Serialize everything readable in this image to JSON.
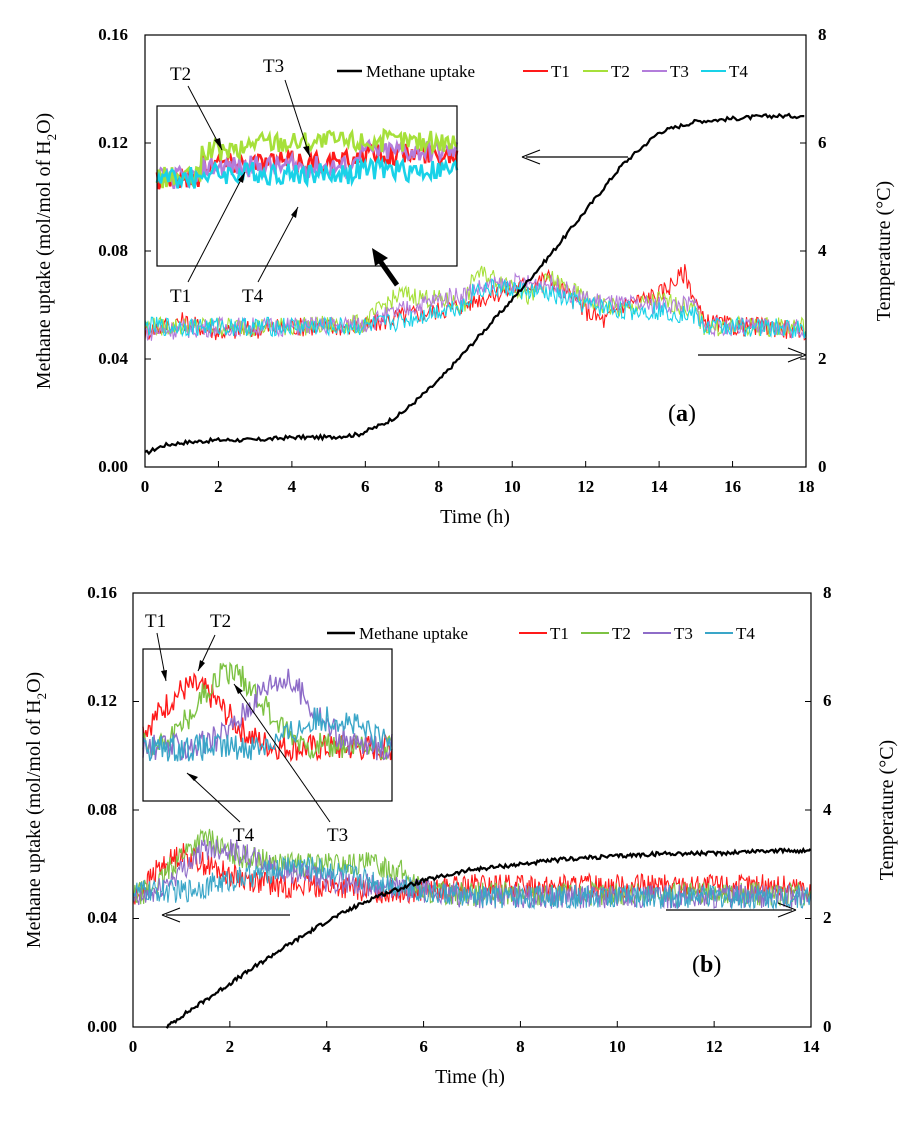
{
  "colors": {
    "methane": "#000000",
    "T1": "#ff1a1a",
    "T2": "#a6e03a",
    "T3": "#b37ddb",
    "T4": "#19d2e8",
    "T2_b": "#7dc243",
    "T3_b": "#8e6cc8",
    "T4_b": "#3aa6c8"
  },
  "chart_data": [
    {
      "type": "line",
      "panel_label_open": "(",
      "panel_label_letter": "a",
      "panel_label_close": ")",
      "xlabel": "Time (h)",
      "ylabel_left_prefix": "Methane uptake (mol/mol of H",
      "ylabel_left_sub": "2",
      "ylabel_left_suffix": "O)",
      "ylabel_right": "Temperature (°C)",
      "xlim": [
        0,
        18
      ],
      "ylim_left": [
        0,
        0.16
      ],
      "ylim_right": [
        0,
        8
      ],
      "x_ticks": [
        "0",
        "2",
        "4",
        "6",
        "8",
        "10",
        "12",
        "14",
        "16",
        "18"
      ],
      "y_left_ticks": [
        "0.00",
        "0.04",
        "0.08",
        "0.12",
        "0.16"
      ],
      "y_right_ticks": [
        "0",
        "2",
        "4",
        "6",
        "8"
      ],
      "legend": [
        "Methane uptake",
        "T1",
        "T2",
        "T3",
        "T4"
      ],
      "series": [
        {
          "name": "Methane uptake",
          "axis": "left",
          "x": [
            0,
            0.5,
            1,
            2,
            3,
            4,
            5,
            5.8,
            6.5,
            7,
            8,
            9,
            10,
            11,
            12,
            13,
            14,
            15,
            16,
            17,
            18
          ],
          "y": [
            0.005,
            0.008,
            0.009,
            0.01,
            0.01,
            0.011,
            0.011,
            0.012,
            0.016,
            0.02,
            0.032,
            0.047,
            0.062,
            0.078,
            0.095,
            0.112,
            0.124,
            0.128,
            0.129,
            0.13,
            0.13
          ]
        },
        {
          "name": "T1",
          "axis": "right",
          "x": [
            0,
            1,
            2,
            4,
            6,
            7,
            8,
            8.7,
            9,
            10,
            10.5,
            11,
            12,
            12.5,
            13,
            14,
            14.7,
            15.2,
            16,
            17,
            18
          ],
          "y": [
            2.5,
            2.7,
            2.5,
            2.6,
            2.6,
            2.8,
            2.9,
            3.0,
            3.1,
            3.3,
            3.4,
            3.5,
            2.9,
            2.7,
            3.0,
            3.2,
            3.6,
            2.7,
            2.6,
            2.6,
            2.5
          ]
        },
        {
          "name": "T2",
          "axis": "right",
          "x": [
            0,
            2,
            4,
            6,
            6.5,
            7,
            8,
            8.7,
            9,
            10,
            10.5,
            11,
            12,
            13,
            14,
            15,
            15.2,
            16,
            18
          ],
          "y": [
            2.6,
            2.6,
            2.6,
            2.65,
            3.0,
            3.2,
            3.1,
            3.0,
            3.6,
            3.4,
            3.1,
            3.5,
            3.1,
            2.9,
            3.1,
            2.9,
            2.6,
            2.6,
            2.6
          ]
        },
        {
          "name": "T3",
          "axis": "right",
          "x": [
            0,
            2,
            4,
            6,
            7,
            8,
            8.7,
            9,
            10,
            11,
            12,
            13,
            14,
            15,
            15.2,
            16,
            18
          ],
          "y": [
            2.5,
            2.6,
            2.6,
            2.65,
            2.9,
            3.1,
            3.2,
            3.3,
            3.4,
            3.4,
            3.1,
            3.0,
            3.0,
            3.0,
            2.6,
            2.6,
            2.55
          ]
        },
        {
          "name": "T4",
          "axis": "right",
          "x": [
            0,
            2,
            4,
            6,
            7,
            8,
            8.7,
            9,
            10,
            11,
            12,
            13,
            14,
            15,
            15.2,
            16,
            18
          ],
          "y": [
            2.6,
            2.6,
            2.6,
            2.6,
            2.7,
            2.9,
            3.0,
            3.3,
            3.3,
            3.2,
            3.0,
            2.9,
            2.9,
            2.8,
            2.6,
            2.6,
            2.55
          ]
        }
      ],
      "annotations": [
        "T2",
        "T3",
        "T1",
        "T4"
      ]
    },
    {
      "type": "line",
      "panel_label_open": "(",
      "panel_label_letter": "b",
      "panel_label_close": ")",
      "xlabel": "Time (h)",
      "ylabel_left_prefix": "Methane uptake (mol/mol of H",
      "ylabel_left_sub": "2",
      "ylabel_left_suffix": "O)",
      "ylabel_right": "Temperature (°C)",
      "xlim": [
        0,
        14
      ],
      "ylim_left": [
        0,
        0.16
      ],
      "ylim_right": [
        0,
        8
      ],
      "x_ticks": [
        "0",
        "2",
        "4",
        "6",
        "8",
        "10",
        "12",
        "14"
      ],
      "y_left_ticks": [
        "0.00",
        "0.04",
        "0.08",
        "0.12",
        "0.16"
      ],
      "y_right_ticks": [
        "0",
        "2",
        "4",
        "6",
        "8"
      ],
      "legend": [
        "Methane uptake",
        "T1",
        "T2",
        "T3",
        "T4"
      ],
      "series": [
        {
          "name": "Methane uptake",
          "axis": "left",
          "x": [
            0.7,
            1,
            1.5,
            2,
            3,
            4,
            5,
            6,
            7,
            8,
            9,
            10,
            11,
            12,
            13,
            14
          ],
          "y": [
            0.0,
            0.004,
            0.01,
            0.016,
            0.028,
            0.039,
            0.048,
            0.054,
            0.058,
            0.06,
            0.062,
            0.063,
            0.064,
            0.064,
            0.065,
            0.065
          ]
        },
        {
          "name": "T1",
          "axis": "right",
          "x": [
            0,
            0.5,
            1,
            1.5,
            2,
            3,
            4,
            5,
            6,
            7,
            8,
            9,
            10,
            11,
            12,
            13,
            14
          ],
          "y": [
            2.3,
            2.9,
            3.2,
            3.0,
            2.8,
            2.6,
            2.6,
            2.5,
            2.5,
            2.6,
            2.6,
            2.6,
            2.6,
            2.6,
            2.6,
            2.6,
            2.55
          ]
        },
        {
          "name": "T2",
          "axis": "right",
          "x": [
            0,
            0.5,
            1,
            1.5,
            2,
            3,
            4,
            5,
            5.5,
            6,
            7,
            8,
            10,
            12,
            14
          ],
          "y": [
            2.4,
            2.6,
            3.2,
            3.5,
            3.2,
            3.0,
            3.0,
            3.0,
            2.9,
            2.5,
            2.45,
            2.45,
            2.45,
            2.45,
            2.45
          ]
        },
        {
          "name": "T3",
          "axis": "right",
          "x": [
            0,
            0.5,
            1,
            1.5,
            2,
            3,
            4,
            5,
            6,
            7,
            8,
            10,
            12,
            14
          ],
          "y": [
            2.3,
            2.5,
            2.9,
            3.3,
            3.3,
            2.9,
            2.7,
            2.6,
            2.5,
            2.4,
            2.4,
            2.4,
            2.4,
            2.4
          ]
        },
        {
          "name": "T4",
          "axis": "right",
          "x": [
            0,
            0.5,
            1,
            1.5,
            2,
            3,
            3.2,
            4,
            5,
            6,
            7,
            8,
            10,
            12,
            14
          ],
          "y": [
            2.5,
            2.5,
            2.5,
            2.6,
            2.7,
            2.9,
            3.0,
            2.9,
            2.7,
            2.5,
            2.4,
            2.4,
            2.4,
            2.4,
            2.4
          ]
        }
      ],
      "annotations": [
        "T1",
        "T2",
        "T4",
        "T3"
      ]
    }
  ]
}
